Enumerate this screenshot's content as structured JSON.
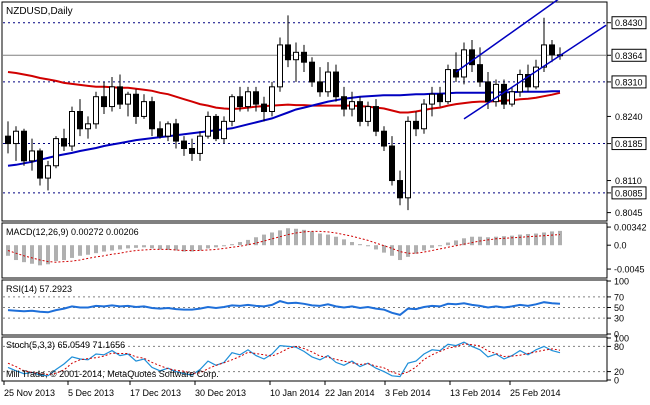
{
  "chart_data": {
    "type": "candlestick",
    "title": "NZDUSD,Daily",
    "copyright": "Mill Trade, © 2001-2014, MetaQuotes Software Corp.",
    "x_tick_labels": [
      "25 Nov 2013",
      "5 Dec 2013",
      "17 Dec 2013",
      "30 Dec 2013",
      "10 Jan 2014",
      "22 Jan 2014",
      "3 Feb 2014",
      "13 Feb 2014",
      "25 Feb 2014"
    ],
    "price_panel": {
      "ylim": [
        0.803,
        0.847
      ],
      "y_tick_labels": [
        "0.8430",
        "0.8364",
        "0.8310",
        "0.8240",
        "0.8185",
        "0.8110",
        "0.8085",
        "0.8045"
      ],
      "current_price": 0.8364,
      "horizontal_levels": [
        0.843,
        0.831,
        0.8185,
        0.8085
      ],
      "candles": [
        {
          "o": 0.82,
          "h": 0.823,
          "l": 0.8165,
          "c": 0.8185
        },
        {
          "o": 0.8185,
          "h": 0.822,
          "l": 0.815,
          "c": 0.821
        },
        {
          "o": 0.821,
          "h": 0.8215,
          "l": 0.814,
          "c": 0.815
        },
        {
          "o": 0.815,
          "h": 0.8195,
          "l": 0.813,
          "c": 0.817
        },
        {
          "o": 0.817,
          "h": 0.8175,
          "l": 0.81,
          "c": 0.8115
        },
        {
          "o": 0.8115,
          "h": 0.815,
          "l": 0.809,
          "c": 0.814
        },
        {
          "o": 0.814,
          "h": 0.82,
          "l": 0.8135,
          "c": 0.8195
        },
        {
          "o": 0.8195,
          "h": 0.8215,
          "l": 0.817,
          "c": 0.818
        },
        {
          "o": 0.818,
          "h": 0.826,
          "l": 0.817,
          "c": 0.825
        },
        {
          "o": 0.825,
          "h": 0.8275,
          "l": 0.82,
          "c": 0.8215
        },
        {
          "o": 0.8215,
          "h": 0.824,
          "l": 0.8195,
          "c": 0.8225
        },
        {
          "o": 0.8225,
          "h": 0.829,
          "l": 0.8215,
          "c": 0.828
        },
        {
          "o": 0.828,
          "h": 0.831,
          "l": 0.8245,
          "c": 0.826
        },
        {
          "o": 0.826,
          "h": 0.832,
          "l": 0.825,
          "c": 0.83
        },
        {
          "o": 0.83,
          "h": 0.8325,
          "l": 0.8255,
          "c": 0.8265
        },
        {
          "o": 0.8265,
          "h": 0.829,
          "l": 0.824,
          "c": 0.8285
        },
        {
          "o": 0.8285,
          "h": 0.8295,
          "l": 0.8225,
          "c": 0.824
        },
        {
          "o": 0.824,
          "h": 0.8285,
          "l": 0.8235,
          "c": 0.827
        },
        {
          "o": 0.827,
          "h": 0.828,
          "l": 0.82,
          "c": 0.8215
        },
        {
          "o": 0.8215,
          "h": 0.823,
          "l": 0.8195,
          "c": 0.82
        },
        {
          "o": 0.82,
          "h": 0.823,
          "l": 0.819,
          "c": 0.8225
        },
        {
          "o": 0.8225,
          "h": 0.8235,
          "l": 0.8175,
          "c": 0.819
        },
        {
          "o": 0.819,
          "h": 0.82,
          "l": 0.816,
          "c": 0.8175
        },
        {
          "o": 0.8175,
          "h": 0.8195,
          "l": 0.815,
          "c": 0.8165
        },
        {
          "o": 0.8165,
          "h": 0.821,
          "l": 0.815,
          "c": 0.82
        },
        {
          "o": 0.82,
          "h": 0.825,
          "l": 0.8195,
          "c": 0.824
        },
        {
          "o": 0.824,
          "h": 0.8245,
          "l": 0.819,
          "c": 0.8195
        },
        {
          "o": 0.8195,
          "h": 0.824,
          "l": 0.8185,
          "c": 0.823
        },
        {
          "o": 0.823,
          "h": 0.8285,
          "l": 0.822,
          "c": 0.828
        },
        {
          "o": 0.828,
          "h": 0.83,
          "l": 0.825,
          "c": 0.826
        },
        {
          "o": 0.826,
          "h": 0.83,
          "l": 0.825,
          "c": 0.829
        },
        {
          "o": 0.829,
          "h": 0.83,
          "l": 0.825,
          "c": 0.8265
        },
        {
          "o": 0.8265,
          "h": 0.828,
          "l": 0.823,
          "c": 0.825
        },
        {
          "o": 0.825,
          "h": 0.831,
          "l": 0.824,
          "c": 0.83
        },
        {
          "o": 0.83,
          "h": 0.84,
          "l": 0.829,
          "c": 0.8385
        },
        {
          "o": 0.8385,
          "h": 0.8445,
          "l": 0.834,
          "c": 0.8355
        },
        {
          "o": 0.8355,
          "h": 0.839,
          "l": 0.831,
          "c": 0.837
        },
        {
          "o": 0.837,
          "h": 0.8385,
          "l": 0.833,
          "c": 0.835
        },
        {
          "o": 0.835,
          "h": 0.836,
          "l": 0.83,
          "c": 0.831
        },
        {
          "o": 0.831,
          "h": 0.834,
          "l": 0.828,
          "c": 0.829
        },
        {
          "o": 0.829,
          "h": 0.835,
          "l": 0.828,
          "c": 0.833
        },
        {
          "o": 0.833,
          "h": 0.8345,
          "l": 0.827,
          "c": 0.828
        },
        {
          "o": 0.828,
          "h": 0.83,
          "l": 0.824,
          "c": 0.8255
        },
        {
          "o": 0.8255,
          "h": 0.829,
          "l": 0.824,
          "c": 0.827
        },
        {
          "o": 0.827,
          "h": 0.828,
          "l": 0.822,
          "c": 0.823
        },
        {
          "o": 0.823,
          "h": 0.827,
          "l": 0.822,
          "c": 0.826
        },
        {
          "o": 0.826,
          "h": 0.8275,
          "l": 0.82,
          "c": 0.821
        },
        {
          "o": 0.821,
          "h": 0.822,
          "l": 0.817,
          "c": 0.818
        },
        {
          "o": 0.818,
          "h": 0.82,
          "l": 0.81,
          "c": 0.811
        },
        {
          "o": 0.811,
          "h": 0.813,
          "l": 0.806,
          "c": 0.8075
        },
        {
          "o": 0.8075,
          "h": 0.824,
          "l": 0.805,
          "c": 0.823
        },
        {
          "o": 0.823,
          "h": 0.825,
          "l": 0.82,
          "c": 0.8215
        },
        {
          "o": 0.8215,
          "h": 0.8275,
          "l": 0.8205,
          "c": 0.8265
        },
        {
          "o": 0.8265,
          "h": 0.83,
          "l": 0.824,
          "c": 0.8285
        },
        {
          "o": 0.8285,
          "h": 0.83,
          "l": 0.826,
          "c": 0.827
        },
        {
          "o": 0.827,
          "h": 0.8345,
          "l": 0.8265,
          "c": 0.8335
        },
        {
          "o": 0.8335,
          "h": 0.837,
          "l": 0.831,
          "c": 0.832
        },
        {
          "o": 0.832,
          "h": 0.839,
          "l": 0.8305,
          "c": 0.8375
        },
        {
          "o": 0.8375,
          "h": 0.8395,
          "l": 0.833,
          "c": 0.8345
        },
        {
          "o": 0.8345,
          "h": 0.838,
          "l": 0.83,
          "c": 0.831
        },
        {
          "o": 0.831,
          "h": 0.833,
          "l": 0.8255,
          "c": 0.827
        },
        {
          "o": 0.827,
          "h": 0.8315,
          "l": 0.826,
          "c": 0.8305
        },
        {
          "o": 0.8305,
          "h": 0.8315,
          "l": 0.8255,
          "c": 0.8265
        },
        {
          "o": 0.8265,
          "h": 0.83,
          "l": 0.826,
          "c": 0.829
        },
        {
          "o": 0.829,
          "h": 0.8335,
          "l": 0.828,
          "c": 0.8325
        },
        {
          "o": 0.8325,
          "h": 0.8345,
          "l": 0.829,
          "c": 0.83
        },
        {
          "o": 0.83,
          "h": 0.8355,
          "l": 0.8295,
          "c": 0.834
        },
        {
          "o": 0.834,
          "h": 0.844,
          "l": 0.833,
          "c": 0.8385
        },
        {
          "o": 0.8385,
          "h": 0.8395,
          "l": 0.835,
          "c": 0.8365
        },
        {
          "o": 0.8365,
          "h": 0.838,
          "l": 0.8355,
          "c": 0.8364
        }
      ],
      "ma_red": [
        0.833,
        0.8328,
        0.8325,
        0.8322,
        0.8318,
        0.8315,
        0.8312,
        0.8308,
        0.8306,
        0.8304,
        0.8302,
        0.83,
        0.83,
        0.8299,
        0.8298,
        0.8298,
        0.8296,
        0.8294,
        0.8292,
        0.8288,
        0.8285,
        0.828,
        0.8275,
        0.827,
        0.8265,
        0.8262,
        0.8258,
        0.8256,
        0.8255,
        0.8256,
        0.8258,
        0.826,
        0.8261,
        0.8262,
        0.8263,
        0.8264,
        0.8263,
        0.8263,
        0.8262,
        0.8262,
        0.8262,
        0.8262,
        0.8262,
        0.8262,
        0.8261,
        0.826,
        0.8258,
        0.8256,
        0.8252,
        0.8248,
        0.8248,
        0.825,
        0.8253,
        0.8256,
        0.8258,
        0.8262,
        0.8265,
        0.8267,
        0.8269,
        0.827,
        0.827,
        0.8271,
        0.8272,
        0.8273,
        0.8275,
        0.8276,
        0.8278,
        0.8281,
        0.8284,
        0.8288
      ],
      "ma_blue": [
        0.814,
        0.8142,
        0.8145,
        0.8148,
        0.8152,
        0.8156,
        0.816,
        0.8163,
        0.8166,
        0.817,
        0.8173,
        0.8176,
        0.818,
        0.8183,
        0.8186,
        0.8189,
        0.8192,
        0.8194,
        0.8196,
        0.8198,
        0.82,
        0.8202,
        0.8204,
        0.8206,
        0.8208,
        0.821,
        0.8212,
        0.8214,
        0.8216,
        0.822,
        0.8224,
        0.8228,
        0.8232,
        0.8236,
        0.8242,
        0.8248,
        0.8254,
        0.8258,
        0.8262,
        0.8266,
        0.827,
        0.8273,
        0.8276,
        0.8278,
        0.828,
        0.8281,
        0.8282,
        0.8283,
        0.8283,
        0.8283,
        0.8284,
        0.8285,
        0.8285,
        0.8286,
        0.8286,
        0.8287,
        0.8288,
        0.8288,
        0.8288,
        0.8288,
        0.8288,
        0.8289,
        0.8289,
        0.8289,
        0.829,
        0.829,
        0.829,
        0.829,
        0.8291,
        0.8291
      ],
      "channel_lines": [
        {
          "i1": 56,
          "y1": 0.833,
          "i2": 69,
          "y2": 0.848
        },
        {
          "i1": 57,
          "y1": 0.8235,
          "i2": 75,
          "y2": 0.8425
        }
      ]
    },
    "macd_panel": {
      "label": "MACD(12,26,9) 0.00272 0.00206",
      "ylim": [
        -0.006,
        0.004
      ],
      "y_tick_labels": [
        "0.00342",
        "0.0",
        "-0.0045"
      ],
      "histogram": [
        -0.002,
        -0.0028,
        -0.0032,
        -0.0035,
        -0.0038,
        -0.0036,
        -0.003,
        -0.0028,
        -0.0024,
        -0.002,
        -0.0018,
        -0.0015,
        -0.0012,
        -0.001,
        -0.0008,
        -0.0006,
        -0.0005,
        -0.0004,
        -0.0006,
        -0.0008,
        -0.0009,
        -0.001,
        -0.0012,
        -0.0012,
        -0.001,
        -0.0006,
        -0.0004,
        -0.0002,
        0.0002,
        0.0006,
        0.001,
        0.0015,
        0.002,
        0.0024,
        0.0028,
        0.0032,
        0.0031,
        0.0029,
        0.0026,
        0.0022,
        0.002,
        0.0016,
        0.0011,
        0.0006,
        0.0002,
        -0.0002,
        -0.0008,
        -0.0014,
        -0.002,
        -0.0028,
        -0.0022,
        -0.0016,
        -0.001,
        -0.0005,
        0.0,
        0.0005,
        0.0009,
        0.0013,
        0.0016,
        0.0016,
        0.0015,
        0.0016,
        0.0017,
        0.0018,
        0.002,
        0.0021,
        0.0022,
        0.0024,
        0.0026,
        0.0027
      ],
      "signal": [
        -0.001,
        -0.0015,
        -0.002,
        -0.0024,
        -0.0028,
        -0.0031,
        -0.0032,
        -0.0031,
        -0.003,
        -0.0028,
        -0.0025,
        -0.0022,
        -0.002,
        -0.0017,
        -0.0015,
        -0.0012,
        -0.001,
        -0.0009,
        -0.0008,
        -0.0008,
        -0.0008,
        -0.0009,
        -0.001,
        -0.001,
        -0.001,
        -0.0009,
        -0.0008,
        -0.0006,
        -0.0004,
        -0.0002,
        0.0001,
        0.0004,
        0.0008,
        0.0012,
        0.0016,
        0.002,
        0.0023,
        0.0025,
        0.0026,
        0.0026,
        0.0025,
        0.0023,
        0.002,
        0.0017,
        0.0013,
        0.0009,
        0.0004,
        -0.0001,
        -0.0006,
        -0.0012,
        -0.0015,
        -0.0015,
        -0.0013,
        -0.001,
        -0.0007,
        -0.0004,
        -0.0001,
        0.0002,
        0.0005,
        0.0008,
        0.001,
        0.0012,
        0.0013,
        0.0014,
        0.0015,
        0.0016,
        0.0017,
        0.0018,
        0.0019,
        0.002
      ]
    },
    "rsi_panel": {
      "label": "RSI(14) 57.2923",
      "ylim": [
        0,
        100
      ],
      "y_tick_labels": [
        "100",
        "70",
        "50",
        "30",
        "0"
      ],
      "levels": [
        70,
        50,
        30
      ],
      "values": [
        45,
        44,
        43,
        44,
        42,
        41,
        45,
        48,
        52,
        50,
        50,
        53,
        52,
        54,
        52,
        53,
        51,
        52,
        49,
        48,
        49,
        47,
        46,
        46,
        48,
        51,
        49,
        51,
        54,
        53,
        55,
        53,
        52,
        55,
        62,
        58,
        59,
        57,
        54,
        53,
        56,
        52,
        50,
        52,
        49,
        51,
        48,
        46,
        40,
        36,
        48,
        47,
        51,
        53,
        52,
        57,
        56,
        58,
        55,
        53,
        50,
        52,
        50,
        52,
        55,
        53,
        56,
        60,
        58,
        57
      ]
    },
    "stoch_panel": {
      "label": "Stoch(5,3,3) 65.0549 71.1656",
      "ylim": [
        0,
        100
      ],
      "y_tick_labels": [
        "100",
        "80",
        "20",
        "0"
      ],
      "levels": [
        80,
        20
      ],
      "k": [
        30,
        22,
        15,
        18,
        12,
        10,
        25,
        38,
        55,
        50,
        48,
        62,
        60,
        70,
        58,
        62,
        45,
        50,
        30,
        22,
        28,
        20,
        15,
        12,
        25,
        45,
        35,
        42,
        65,
        60,
        72,
        58,
        50,
        62,
        82,
        80,
        78,
        68,
        55,
        48,
        58,
        42,
        35,
        45,
        32,
        40,
        28,
        20,
        10,
        8,
        40,
        45,
        62,
        72,
        70,
        85,
        82,
        90,
        80,
        72,
        55,
        62,
        50,
        58,
        70,
        60,
        72,
        80,
        70,
        65
      ],
      "d": [
        40,
        32,
        22,
        18,
        15,
        13,
        16,
        24,
        40,
        48,
        51,
        53,
        57,
        64,
        63,
        63,
        55,
        52,
        42,
        34,
        27,
        23,
        21,
        16,
        17,
        27,
        35,
        41,
        48,
        56,
        66,
        63,
        60,
        57,
        65,
        75,
        80,
        75,
        67,
        57,
        54,
        49,
        45,
        41,
        37,
        39,
        33,
        29,
        19,
        13,
        19,
        31,
        49,
        60,
        68,
        76,
        79,
        86,
        84,
        81,
        69,
        63,
        56,
        57,
        59,
        63,
        67,
        71,
        74,
        71
      ]
    }
  }
}
